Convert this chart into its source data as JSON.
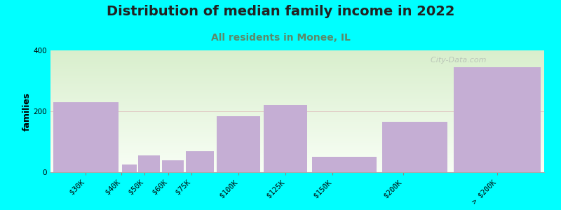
{
  "title": "Distribution of median family income in 2022",
  "subtitle": "All residents in Monee, IL",
  "ylabel": "families",
  "categories": [
    "$30K",
    "$40K",
    "$50K",
    "$60K",
    "$75K",
    "$100K",
    "$125K",
    "$150K",
    "$200K",
    "> $200K"
  ],
  "values": [
    230,
    25,
    55,
    40,
    70,
    185,
    220,
    50,
    165,
    345
  ],
  "bar_color": "#c5aed4",
  "background_color": "#00ffff",
  "plot_bg_top": "#d8eecc",
  "plot_bg_bottom": "#f8fef5",
  "title_fontsize": 14,
  "subtitle_fontsize": 10,
  "subtitle_color": "#5a8a6a",
  "ylabel_fontsize": 9,
  "tick_fontsize": 7.5,
  "ylim": [
    0,
    400
  ],
  "yticks": [
    0,
    200,
    400
  ],
  "watermark": "  City-Data.com",
  "watermark_color": "#b0b8b0",
  "grid_color": "#cccccc"
}
